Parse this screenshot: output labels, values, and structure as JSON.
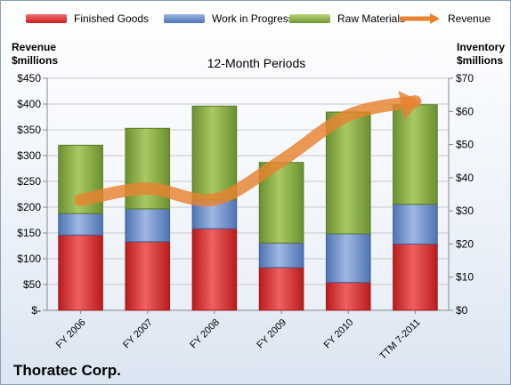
{
  "chart_data": {
    "type": "bar",
    "stacked": true,
    "title": "12-Month Periods",
    "company": "Thoratec Corp.",
    "left_axis": {
      "label_line1": "Revenue",
      "label_line2": "$millions",
      "range": [
        0,
        450
      ],
      "ticks": [
        0,
        50,
        100,
        150,
        200,
        250,
        300,
        350,
        400,
        450
      ],
      "tick_labels": [
        "$-",
        "$50",
        "$100",
        "$150",
        "$200",
        "$250",
        "$300",
        "$350",
        "$400",
        "$450"
      ]
    },
    "right_axis": {
      "label_line1": "Inventory",
      "label_line2": "$millions",
      "range": [
        0,
        70
      ],
      "ticks": [
        0,
        10,
        20,
        30,
        40,
        50,
        60,
        70
      ],
      "tick_labels": [
        "$0",
        "$10",
        "$20",
        "$30",
        "$40",
        "$50",
        "$60",
        "$70"
      ]
    },
    "categories": [
      "FY 2006",
      "FY 2007",
      "FY 2008",
      "FY 2009",
      "FY 2010",
      "TTM 7-2011"
    ],
    "series": [
      {
        "name": "Finished Goods",
        "axis": "right",
        "color": "#e03232",
        "values": [
          22.7,
          20.7,
          24.6,
          12.9,
          8.4,
          20.0
        ]
      },
      {
        "name": "Work in Progress",
        "axis": "right",
        "color": "#6b8fc9",
        "values": [
          6.5,
          9.9,
          8.7,
          7.4,
          14.7,
          12.0
        ]
      },
      {
        "name": "Raw Materials",
        "axis": "right",
        "color": "#8fb24a",
        "values": [
          20.6,
          24.3,
          28.3,
          24.3,
          36.7,
          30.0
        ]
      },
      {
        "name": "Revenue",
        "axis": "left",
        "type": "line",
        "color": "#e8822f",
        "values": [
          214,
          236,
          215,
          290,
          378,
          405
        ]
      }
    ],
    "grid": true,
    "legend_position": "top"
  }
}
